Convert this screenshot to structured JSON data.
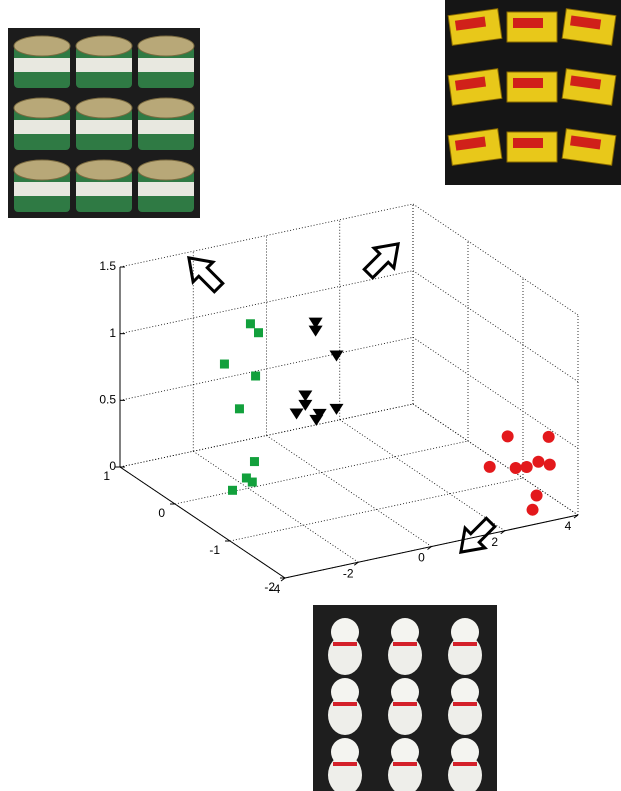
{
  "chart_data": {
    "type": "scatter3d",
    "xlim": [
      -4,
      4
    ],
    "ylim": [
      -2,
      1
    ],
    "zlim": [
      0,
      1.5
    ],
    "xticks": [
      -4,
      -2,
      0,
      2,
      4
    ],
    "yticks": [
      -2,
      -1,
      0,
      1
    ],
    "zticks": [
      0,
      0.5,
      1,
      1.5
    ],
    "grid": true,
    "series": [
      {
        "color": "#12a03c",
        "marker": "square",
        "x": [
          -1.94,
          -1.72,
          -2.65,
          -1.8,
          -2.24,
          -1.83,
          -2.05,
          -1.89,
          -2.43
        ],
        "y": [
          0,
          0,
          0,
          0,
          0,
          0,
          0,
          0,
          0
        ],
        "z": [
          1.23,
          1.15,
          0.97,
          0.83,
          0.61,
          0.19,
          0.08,
          0.04,
          0.01
        ]
      },
      {
        "color": "#000000",
        "marker": "triangle",
        "x": [
          0.59,
          0.59,
          1.16,
          0.31,
          0.31,
          0.07,
          0.61,
          0.7,
          1.16
        ],
        "y": [
          0.5,
          0.5,
          0.5,
          0.5,
          0.5,
          0.5,
          0.5,
          0.5,
          0.5
        ],
        "z": [
          0.95,
          0.89,
          0.67,
          0.42,
          0.35,
          0.3,
          0.22,
          0.26,
          0.27
        ]
      },
      {
        "color": "#e3191c",
        "marker": "circle",
        "x": [
          2.83,
          3.95,
          2.34,
          3.05,
          3.35,
          3.67,
          3.98,
          3.62,
          3.51
        ],
        "y": [
          -1.5,
          -1.5,
          -1.5,
          -1.5,
          -1.5,
          -1.5,
          -1.5,
          -1.5,
          -1.5
        ],
        "z": [
          0.52,
          0.45,
          0.32,
          0.27,
          0.26,
          0.28,
          0.24,
          0.03,
          -0.07
        ]
      }
    ]
  }
}
